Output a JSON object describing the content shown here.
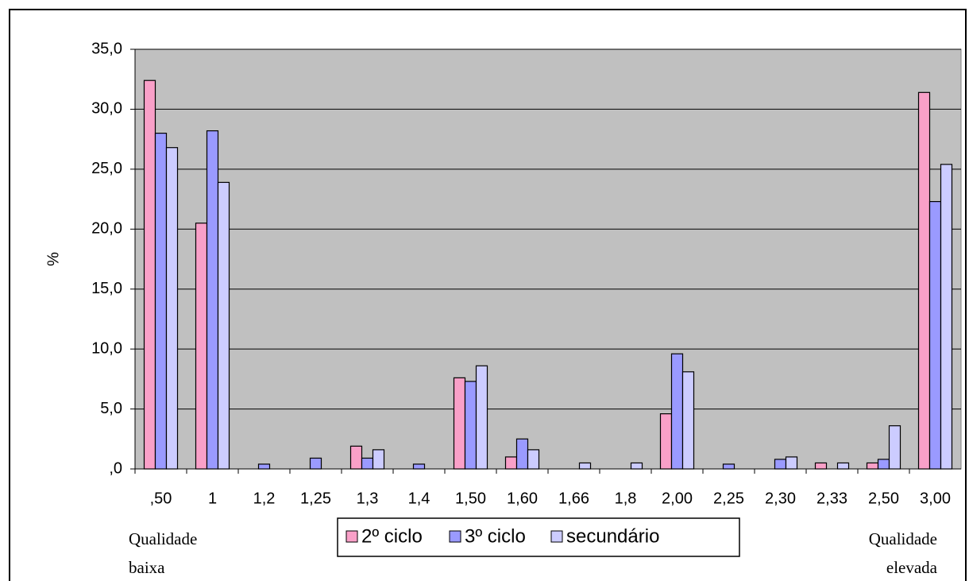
{
  "chart_data": {
    "type": "bar",
    "ylabel": "%",
    "categories": [
      ",50",
      "1",
      "1,2",
      "1,25",
      "1,3",
      "1,4",
      "1,50",
      "1,60",
      "1,66",
      "1,8",
      "2,00",
      "2,25",
      "2,30",
      "2,33",
      "2,50",
      "3,00"
    ],
    "series": [
      {
        "name": "2º ciclo",
        "color": "#f9a0c8",
        "values": [
          32.4,
          20.5,
          0,
          0,
          1.9,
          0,
          7.6,
          1.0,
          0,
          0,
          4.6,
          0,
          0,
          0.5,
          0.5,
          31.4
        ]
      },
      {
        "name": "3º ciclo",
        "color": "#9a9aff",
        "values": [
          28.0,
          28.2,
          0.4,
          0.9,
          0.9,
          0.4,
          7.3,
          2.5,
          0,
          0,
          9.6,
          0.4,
          0.8,
          0,
          0.8,
          22.3
        ]
      },
      {
        "name": "secundário",
        "color": "#ccccff",
        "values": [
          26.8,
          23.9,
          0,
          0,
          1.6,
          0,
          8.6,
          1.6,
          0.5,
          0.5,
          8.1,
          0,
          1.0,
          0.5,
          3.6,
          25.4
        ]
      }
    ],
    "ylim": [
      0,
      35
    ],
    "yticks": [
      {
        "value": 0,
        "label": ",0"
      },
      {
        "value": 5,
        "label": "5,0"
      },
      {
        "value": 10,
        "label": "10,0"
      },
      {
        "value": 15,
        "label": "15,0"
      },
      {
        "value": 20,
        "label": "20,0"
      },
      {
        "value": 25,
        "label": "25,0"
      },
      {
        "value": 30,
        "label": "30,0"
      },
      {
        "value": 35,
        "label": "35,0"
      }
    ],
    "grid": true,
    "background": "#c0c0c0",
    "annotations": [
      "Qualidade baixa",
      "Qualidade elevada"
    ],
    "legend": "bottom"
  }
}
